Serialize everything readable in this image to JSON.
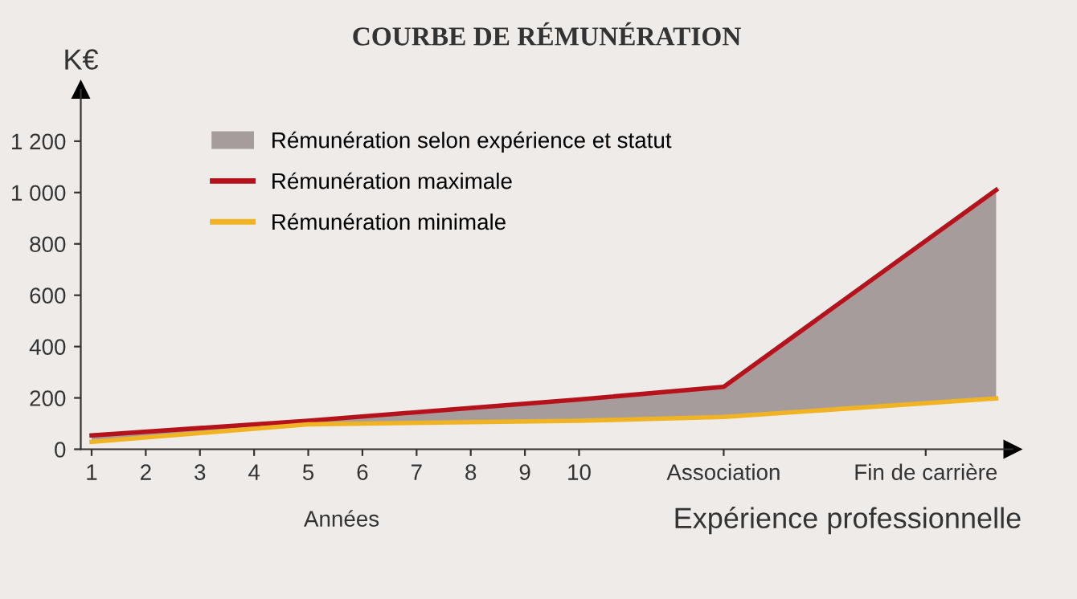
{
  "chart_data": {
    "type": "area",
    "title": "COURBE DE RÉMUNÉRATION",
    "ylabel": "K€",
    "xlabel": "Expérience professionnelle",
    "annotations": [
      "Années"
    ],
    "x": [
      1,
      5,
      10,
      12.67,
      17.7
    ],
    "series": [
      {
        "name": "Rémunération selon expérience et statut",
        "color": "#a59c9b",
        "values": [
          null,
          null,
          null,
          null,
          null
        ],
        "lower": [
          29,
          97,
          111,
          126,
          198
        ],
        "upper": [
          54,
          111,
          194,
          243,
          1010
        ]
      },
      {
        "name": "Rémunération maximale",
        "type": "line",
        "color": "#b5121b",
        "values": [
          54,
          111,
          194,
          243,
          1010
        ]
      },
      {
        "name": "Rémunération minimale",
        "type": "line",
        "color": "#f0b323",
        "values": [
          29,
          97,
          111,
          126,
          198
        ]
      }
    ],
    "xlim": [
      0.8,
      18
    ],
    "xticks": [
      1,
      2,
      3,
      4,
      5,
      6,
      7,
      8,
      9,
      10,
      {
        "value": 12.67,
        "label": "Association"
      },
      {
        "value": 16.4,
        "label": "Fin de carrière"
      }
    ],
    "ylim": [
      0,
      1400
    ],
    "yticks": [
      0,
      200,
      400,
      600,
      800,
      {
        "value": 1000,
        "label": "1 000"
      },
      {
        "value": 1200,
        "label": "1 200"
      }
    ],
    "grid": false,
    "legend": "top left",
    "marker": "none",
    "line_style": "solid"
  }
}
